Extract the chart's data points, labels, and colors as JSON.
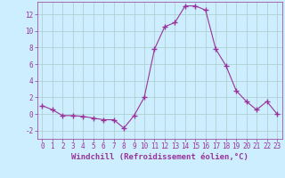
{
  "x": [
    0,
    1,
    2,
    3,
    4,
    5,
    6,
    7,
    8,
    9,
    10,
    11,
    12,
    13,
    14,
    15,
    16,
    17,
    18,
    19,
    20,
    21,
    22,
    23
  ],
  "y": [
    1.0,
    0.5,
    -0.2,
    -0.2,
    -0.3,
    -0.5,
    -0.7,
    -0.7,
    -1.7,
    -0.2,
    2.0,
    7.8,
    10.5,
    11.0,
    13.0,
    13.0,
    12.5,
    7.8,
    5.8,
    2.8,
    1.5,
    0.5,
    1.5,
    0.0
  ],
  "line_color": "#993399",
  "marker": "+",
  "marker_size": 4,
  "background_color": "#cceeff",
  "grid_color": "#aacccc",
  "xlabel": "Windchill (Refroidissement éolien,°C)",
  "ylabel": "",
  "xlim": [
    -0.5,
    23.5
  ],
  "ylim": [
    -3.0,
    13.5
  ],
  "yticks": [
    -2,
    0,
    2,
    4,
    6,
    8,
    10,
    12
  ],
  "xticks": [
    0,
    1,
    2,
    3,
    4,
    5,
    6,
    7,
    8,
    9,
    10,
    11,
    12,
    13,
    14,
    15,
    16,
    17,
    18,
    19,
    20,
    21,
    22,
    23
  ],
  "tick_color": "#993399",
  "label_color": "#993399",
  "font_size": 5.5,
  "label_font_size": 6.5
}
